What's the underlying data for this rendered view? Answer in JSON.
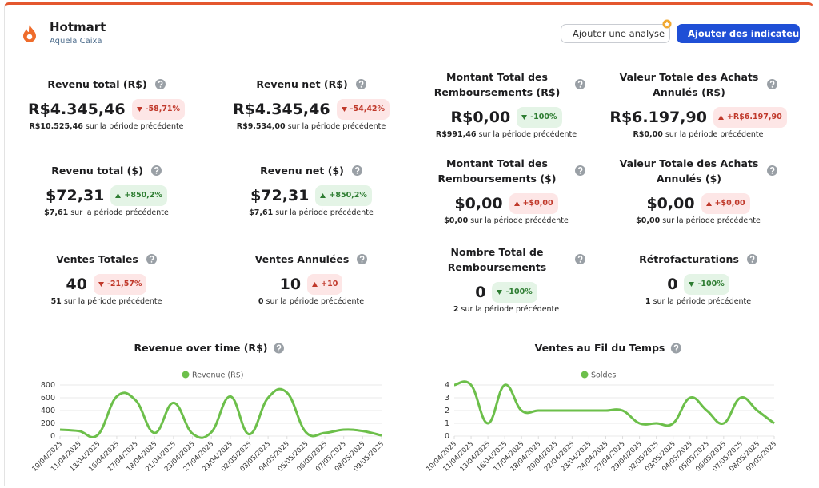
{
  "header": {
    "title": "Hotmart",
    "subtitle": "Aquela Caixa"
  },
  "buttons": [
    "Ajouter une analyse",
    "Ajouter des indicateurs"
  ],
  "previous_label": "sur la période précédente",
  "metrics": [
    {
      "label": "Revenu total (R$)",
      "value": "R$4.345,46",
      "change": "-58,71%",
      "trend": "down",
      "tone": "bad",
      "previous": "R$10.525,46"
    },
    {
      "label": "Revenu net (R$)",
      "value": "R$4.345,46",
      "change": "-54,42%",
      "trend": "down",
      "tone": "bad",
      "previous": "R$9.534,00"
    },
    {
      "label": "Montant Total des Remboursements (R$)",
      "value": "R$0,00",
      "change": "-100%",
      "trend": "down",
      "tone": "good",
      "previous": "R$991,46"
    },
    {
      "label": "Valeur Totale des Achats Annulés (R$)",
      "value": "R$6.197,90",
      "change": "+R$6.197,90",
      "trend": "up",
      "tone": "bad",
      "previous": "R$0,00"
    },
    {
      "label": "Revenu total ($)",
      "value": "$72,31",
      "change": "+850,2%",
      "trend": "up",
      "tone": "good",
      "previous": "$7,61"
    },
    {
      "label": "Revenu net ($)",
      "value": "$72,31",
      "change": "+850,2%",
      "trend": "up",
      "tone": "good",
      "previous": "$7,61"
    },
    {
      "label": "Montant Total des Remboursements ($)",
      "value": "$0,00",
      "change": "+$0,00",
      "trend": "up",
      "tone": "bad",
      "previous": "$0,00"
    },
    {
      "label": "Valeur Totale des Achats Annulés ($)",
      "value": "$0,00",
      "change": "+$0,00",
      "trend": "up",
      "tone": "bad",
      "previous": "$0,00"
    },
    {
      "label": "Ventes Totales",
      "value": "40",
      "change": "-21,57%",
      "trend": "down",
      "tone": "bad",
      "previous": "51"
    },
    {
      "label": "Ventes Annulées",
      "value": "10",
      "change": "+10",
      "trend": "up",
      "tone": "bad",
      "previous": "0"
    },
    {
      "label": "Nombre Total de Remboursements",
      "value": "0",
      "change": "-100%",
      "trend": "down",
      "tone": "good",
      "previous": "2"
    },
    {
      "label": "Rétrofacturations",
      "value": "0",
      "change": "-100%",
      "trend": "down",
      "tone": "good",
      "previous": "1"
    }
  ],
  "chart_data": [
    {
      "type": "line",
      "title": "Revenue over time (R$)",
      "categories": [
        "10/04/2025",
        "11/04/2025",
        "13/04/2025",
        "16/04/2025",
        "17/04/2025",
        "18/04/2025",
        "21/04/2025",
        "23/04/2025",
        "27/04/2025",
        "29/04/2025",
        "02/05/2025",
        "03/05/2025",
        "04/05/2025",
        "05/05/2025",
        "06/05/2025",
        "07/05/2025",
        "08/05/2025",
        "09/05/2025"
      ],
      "series": [
        {
          "name": "Revenue (R$)",
          "color": "#6cbf4a",
          "values": [
            100,
            80,
            20,
            620,
            560,
            50,
            520,
            40,
            60,
            620,
            30,
            600,
            680,
            60,
            50,
            100,
            80,
            10
          ]
        }
      ],
      "ylim": [
        0,
        800
      ],
      "yticks": [
        0,
        200,
        400,
        600,
        800
      ],
      "grid": true
    },
    {
      "type": "line",
      "title": "Ventes au Fil du Temps",
      "categories": [
        "10/04/2025",
        "11/04/2025",
        "13/04/2025",
        "16/04/2025",
        "17/04/2025",
        "18/04/2025",
        "20/04/2025",
        "22/04/2025",
        "23/04/2025",
        "24/04/2025",
        "27/04/2025",
        "29/04/2025",
        "02/05/2025",
        "03/05/2025",
        "04/05/2025",
        "05/05/2025",
        "06/05/2025",
        "07/05/2025",
        "08/05/2025",
        "09/05/2025"
      ],
      "series": [
        {
          "name": "Soldes",
          "color": "#6cbf4a",
          "values": [
            4,
            4,
            1,
            4,
            2,
            2,
            2,
            2,
            2,
            2,
            2,
            1,
            1,
            1,
            3,
            2,
            1,
            3,
            2,
            1
          ]
        }
      ],
      "ylim": [
        0,
        4
      ],
      "yticks": [
        0,
        1,
        2,
        3,
        4
      ],
      "grid": true
    }
  ]
}
